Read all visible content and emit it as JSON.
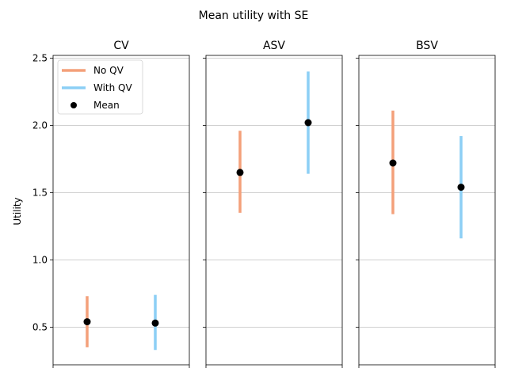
{
  "chart_data": {
    "type": "errorbar",
    "title": "Mean utility with SE",
    "ylabel": "Utility",
    "ylim": [
      0.22,
      2.52
    ],
    "yticks": [
      0.5,
      1.0,
      1.5,
      2.0,
      2.5
    ],
    "ytick_labels": [
      "0.5",
      "1.0",
      "1.5",
      "2.0",
      "2.5"
    ],
    "grid": "horizontal",
    "legend": {
      "placement": "top-left",
      "panel": "CV",
      "entries": [
        {
          "label": "No QV",
          "kind": "line",
          "color": "#f4a07a"
        },
        {
          "label": "With QV",
          "kind": "line",
          "color": "#8ccff5"
        },
        {
          "label": "Mean",
          "kind": "marker",
          "color": "#000000"
        }
      ]
    },
    "panels": [
      {
        "title": "CV",
        "series": [
          {
            "name": "No QV",
            "mean": 0.54,
            "lower": 0.35,
            "upper": 0.73
          },
          {
            "name": "With QV",
            "mean": 0.53,
            "lower": 0.33,
            "upper": 0.74
          }
        ]
      },
      {
        "title": "ASV",
        "series": [
          {
            "name": "No QV",
            "mean": 1.65,
            "lower": 1.35,
            "upper": 1.96
          },
          {
            "name": "With QV",
            "mean": 2.02,
            "lower": 1.64,
            "upper": 2.4
          }
        ]
      },
      {
        "title": "BSV",
        "series": [
          {
            "name": "No QV",
            "mean": 1.72,
            "lower": 1.34,
            "upper": 2.11
          },
          {
            "name": "With QV",
            "mean": 1.54,
            "lower": 1.16,
            "upper": 1.92
          }
        ]
      }
    ],
    "colors": {
      "No QV": "#f4a07a",
      "With QV": "#8ccff5",
      "Mean": "#000000",
      "grid": "#c0c0c0"
    }
  }
}
